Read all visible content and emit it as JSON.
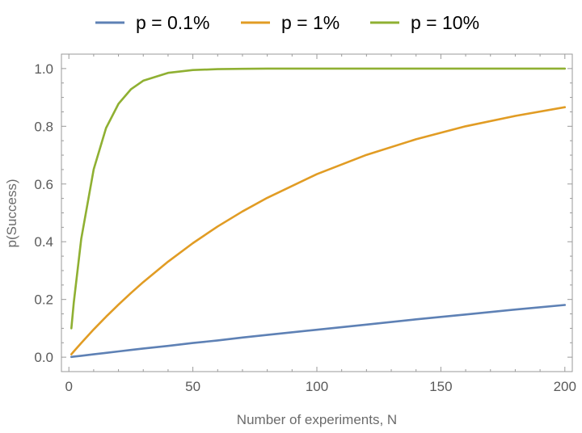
{
  "chart_data": {
    "type": "line",
    "title": "",
    "xlabel": "Number of experiments, N",
    "ylabel": "p(Success)",
    "xlim": [
      -3,
      203
    ],
    "ylim": [
      -0.05,
      1.05
    ],
    "x_ticks": [
      0,
      50,
      100,
      150,
      200
    ],
    "x_tick_labels": [
      "0",
      "50",
      "100",
      "150",
      "200"
    ],
    "y_ticks": [
      0.0,
      0.2,
      0.4,
      0.6,
      0.8,
      1.0
    ],
    "y_tick_labels": [
      "0.0",
      "0.2",
      "0.4",
      "0.6",
      "0.8",
      "1.0"
    ],
    "grid": false,
    "legend_position": "top",
    "x": [
      1,
      2,
      5,
      10,
      15,
      20,
      25,
      30,
      40,
      50,
      60,
      70,
      80,
      100,
      120,
      140,
      160,
      180,
      200
    ],
    "series": [
      {
        "name": "p = 0.1%",
        "color": "#5e81b5",
        "values": [
          0.001,
          0.002,
          0.005,
          0.01,
          0.015,
          0.02,
          0.025,
          0.03,
          0.039,
          0.049,
          0.058,
          0.068,
          0.077,
          0.095,
          0.113,
          0.131,
          0.148,
          0.165,
          0.181
        ]
      },
      {
        "name": "p = 1%",
        "color": "#e19c24",
        "values": [
          0.01,
          0.02,
          0.049,
          0.096,
          0.14,
          0.182,
          0.222,
          0.26,
          0.331,
          0.395,
          0.453,
          0.505,
          0.552,
          0.634,
          0.701,
          0.755,
          0.8,
          0.836,
          0.866
        ]
      },
      {
        "name": "p = 10%",
        "color": "#8fb032",
        "values": [
          0.1,
          0.19,
          0.41,
          0.651,
          0.794,
          0.878,
          0.928,
          0.958,
          0.985,
          0.995,
          0.998,
          0.999,
          1.0,
          1.0,
          1.0,
          1.0,
          1.0,
          1.0,
          1.0
        ]
      }
    ]
  }
}
